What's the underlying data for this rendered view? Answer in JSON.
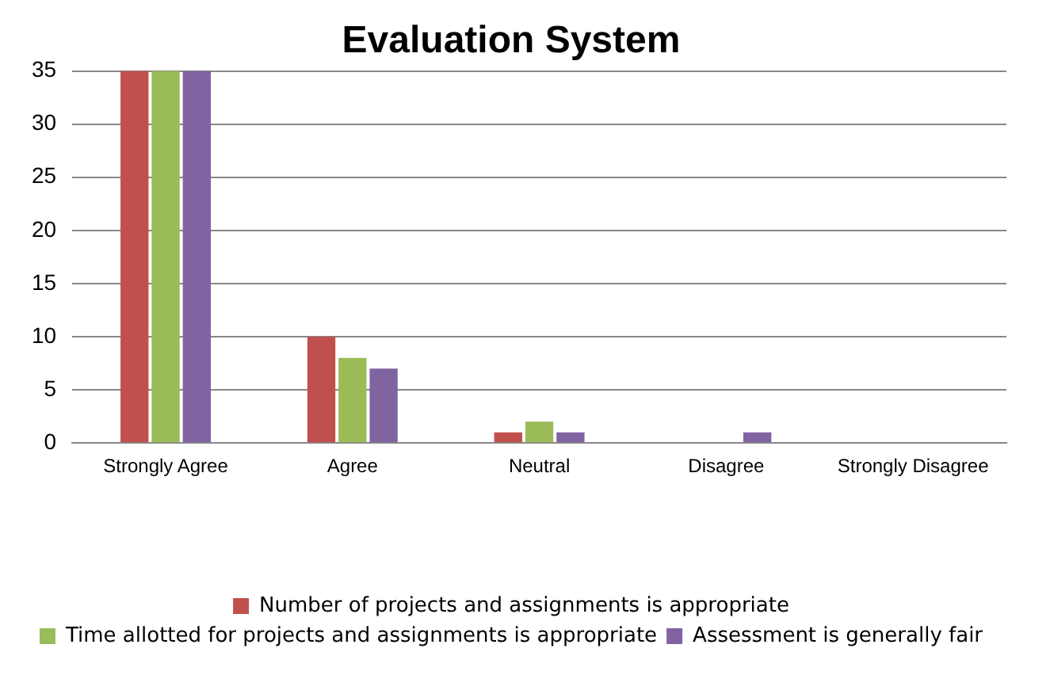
{
  "chart_data": {
    "type": "bar",
    "title": "Evaluation System",
    "categories": [
      "Strongly Agree",
      "Agree",
      "Neutral",
      "Disagree",
      "Strongly Disagree"
    ],
    "series": [
      {
        "name": "Number of projects and assignments is appropriate",
        "color": "#c0504d",
        "values": [
          35,
          10,
          1,
          0,
          0
        ]
      },
      {
        "name": "Time allotted for projects and assignments is appropriate",
        "color": "#9bbb59",
        "values": [
          35,
          8,
          2,
          0,
          0
        ]
      },
      {
        "name": "Assessment is generally fair",
        "color": "#8064a2",
        "values": [
          35,
          7,
          1,
          1,
          0
        ]
      }
    ],
    "ylim": [
      0,
      35
    ],
    "yticks": [
      0,
      5,
      10,
      15,
      20,
      25,
      30,
      35
    ],
    "grid": "y",
    "legend": "bottom"
  }
}
